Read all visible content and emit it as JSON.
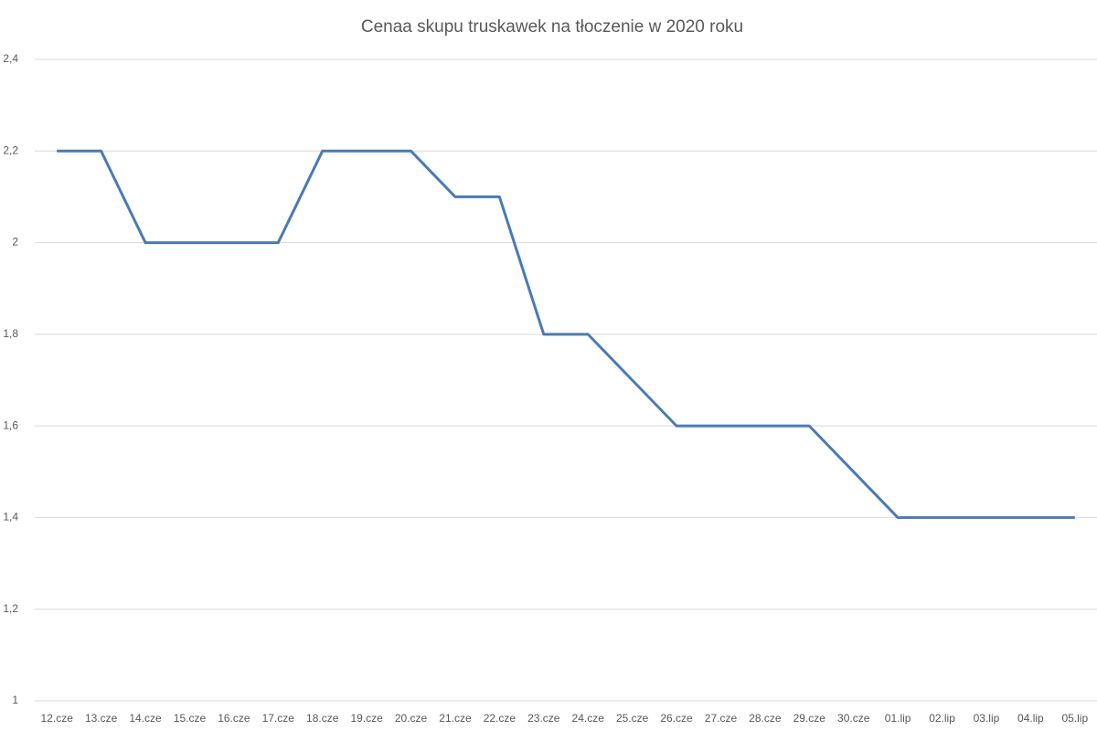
{
  "chart_data": {
    "type": "line",
    "title": "Cenaa skupu truskawek na tłoczenie w 2020 roku",
    "categories": [
      "12.cze",
      "13.cze",
      "14.cze",
      "15.cze",
      "16.cze",
      "17.cze",
      "18.cze",
      "19.cze",
      "20.cze",
      "21.cze",
      "22.cze",
      "23.cze",
      "24.cze",
      "25.cze",
      "26.cze",
      "27.cze",
      "28.cze",
      "29.cze",
      "30.cze",
      "01.lip",
      "02.lip",
      "03.lip",
      "04.lip",
      "05.lip"
    ],
    "values": [
      2.2,
      2.2,
      2.0,
      2.0,
      2.0,
      2.0,
      2.2,
      2.2,
      2.2,
      2.1,
      2.1,
      1.8,
      1.8,
      1.7,
      1.6,
      1.6,
      1.6,
      1.6,
      1.5,
      1.4,
      1.4,
      1.4,
      1.4,
      1.4
    ],
    "color": "#4a7ab5",
    "ylim": [
      1,
      2.4
    ],
    "yticks": [
      1,
      {
        "value": 1.2,
        "label": "1,2"
      },
      {
        "value": 1.4,
        "label": "1,4"
      },
      {
        "value": 1.6,
        "label": "1,6"
      },
      {
        "value": 1.8,
        "label": "1,8"
      },
      2,
      {
        "value": 2.2,
        "label": "2,2"
      },
      {
        "value": 2.4,
        "label": "2,4"
      }
    ],
    "grid": true
  }
}
